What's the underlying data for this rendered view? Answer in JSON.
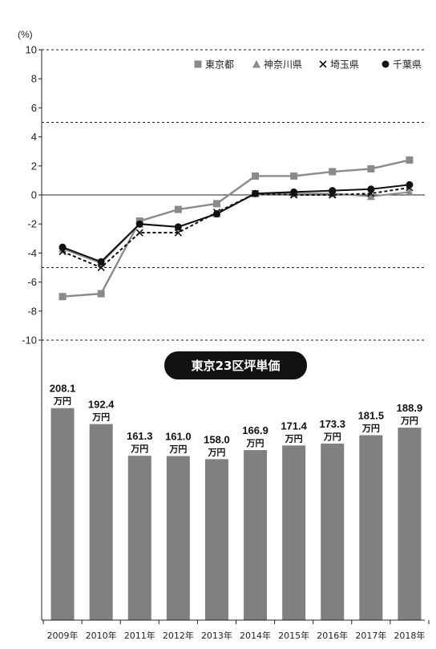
{
  "chart_data": [
    {
      "type": "line",
      "unit_label": "(%)",
      "categories": [
        "2009年",
        "2010年",
        "2011年",
        "2012年",
        "2013年",
        "2014年",
        "2015年",
        "2016年",
        "2017年",
        "2018年"
      ],
      "ylim": [
        -10,
        10
      ],
      "yticks": [
        "10",
        "8",
        "6",
        "4",
        "2",
        "0",
        "-2",
        "-4",
        "-6",
        "-8",
        "-10"
      ],
      "dashed_reference_lines": [
        10,
        5,
        -5,
        -10
      ],
      "solid_reference_lines": [
        0
      ],
      "legend_position": "top-right",
      "series": [
        {
          "name": "東京都",
          "marker": "square",
          "color": "#8a8a8a",
          "line_style": "solid",
          "values": [
            -7.0,
            -6.8,
            -1.8,
            -1.0,
            -0.6,
            1.3,
            1.3,
            1.6,
            1.8,
            2.4
          ]
        },
        {
          "name": "神奈川県",
          "marker": "triangle",
          "color": "#8a8a8a",
          "line_style": "solid",
          "values": [
            -3.7,
            -4.7,
            -2.0,
            -2.2,
            -1.3,
            0.1,
            0.1,
            0.1,
            -0.1,
            0.2
          ]
        },
        {
          "name": "埼玉県",
          "marker": "cross",
          "color": "#111111",
          "line_style": "dashed",
          "values": [
            -3.9,
            -5.0,
            -2.6,
            -2.6,
            -1.2,
            0.1,
            0.0,
            0.0,
            0.1,
            0.5
          ]
        },
        {
          "name": "千葉県",
          "marker": "circle",
          "color": "#111111",
          "line_style": "solid",
          "values": [
            -3.6,
            -4.6,
            -2.0,
            -2.2,
            -1.3,
            0.1,
            0.2,
            0.3,
            0.4,
            0.7
          ]
        }
      ]
    },
    {
      "type": "bar",
      "title": "東京23区坪単価",
      "unit_suffix": "万円",
      "categories": [
        "2009年",
        "2010年",
        "2011年",
        "2012年",
        "2013年",
        "2014年",
        "2015年",
        "2016年",
        "2017年",
        "2018年"
      ],
      "values": [
        208.1,
        192.4,
        161.3,
        161.0,
        158.0,
        166.9,
        171.4,
        173.3,
        181.5,
        188.9
      ],
      "value_labels": [
        "208.1",
        "192.4",
        "161.3",
        "161.0",
        "158.0",
        "166.9",
        "171.4",
        "173.3",
        "181.5",
        "188.9"
      ],
      "color": "#808080"
    }
  ]
}
